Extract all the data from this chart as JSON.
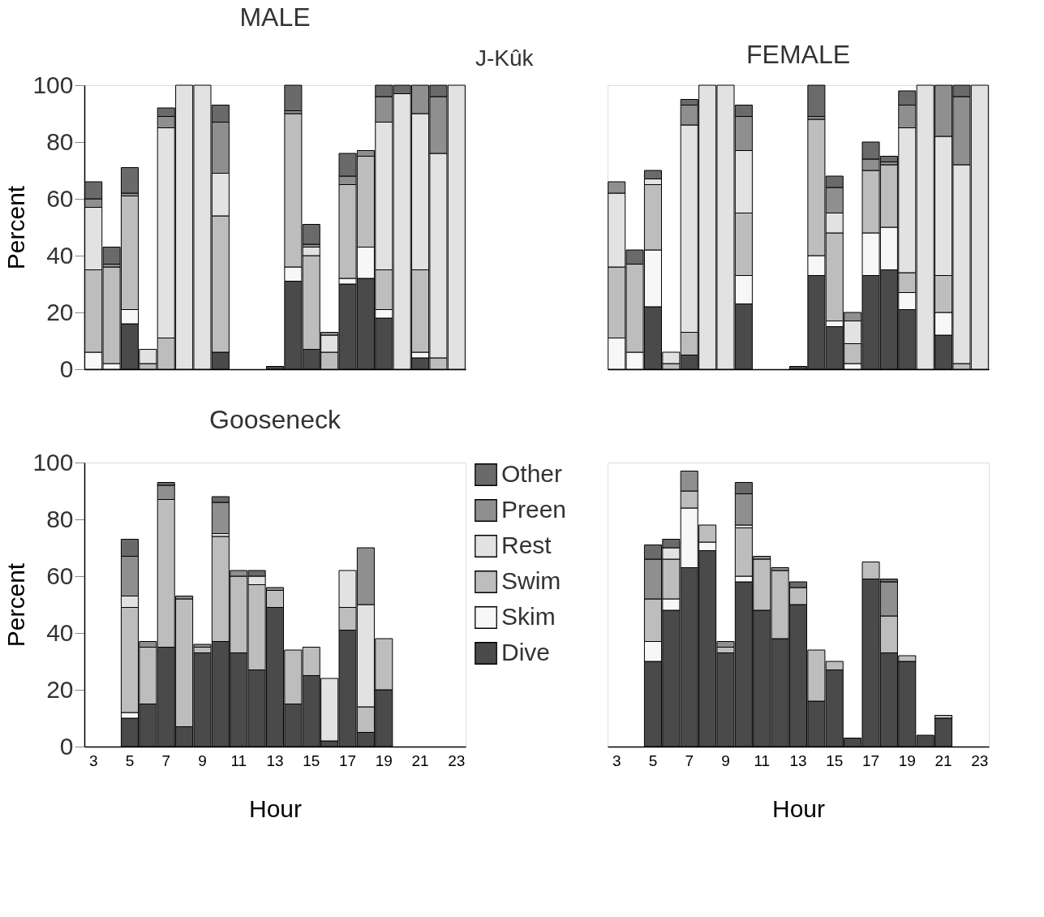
{
  "chart_data": [
    {
      "type": "bar",
      "title": "MALE",
      "annotations": [
        "J-Kûk"
      ],
      "stacked": true,
      "ylabel": "Percent",
      "tick_labels": "y",
      "grid": false,
      "categories": [
        "3",
        null,
        "5",
        null,
        "7",
        null,
        "9",
        null,
        "11",
        null,
        "13",
        null,
        "15",
        null,
        "17",
        null,
        "19",
        null,
        "21",
        null,
        "23"
      ],
      "ylim": [
        0,
        100
      ],
      "yticks": [
        0,
        20,
        40,
        60,
        80,
        100
      ],
      "series": [
        {
          "color": "#4a4a4a",
          "values": [
            null,
            null,
            16,
            null,
            null,
            null,
            null,
            6,
            null,
            null,
            1,
            31,
            7,
            null,
            30,
            32,
            18,
            null,
            4,
            null,
            null
          ]
        },
        {
          "color": "#f7f7f7",
          "values": [
            6,
            2,
            5,
            null,
            null,
            null,
            null,
            null,
            null,
            null,
            null,
            5,
            null,
            null,
            2,
            11,
            3,
            null,
            2,
            null,
            null
          ]
        },
        {
          "color": "#bdbdbd",
          "values": [
            29,
            34,
            40,
            2,
            11,
            null,
            null,
            48,
            null,
            null,
            null,
            54,
            33,
            6,
            33,
            32,
            14,
            null,
            29,
            4,
            null
          ]
        },
        {
          "color": "#e2e2e2",
          "values": [
            22,
            null,
            null,
            5,
            74,
            100,
            100,
            15,
            null,
            null,
            null,
            null,
            3,
            6,
            null,
            null,
            52,
            97,
            55,
            72,
            100
          ]
        },
        {
          "color": "#8f8f8f",
          "values": [
            3,
            1,
            1,
            null,
            4,
            null,
            null,
            18,
            null,
            null,
            null,
            1,
            1,
            1,
            3,
            2,
            9,
            null,
            10,
            20,
            null
          ]
        },
        {
          "color": "#6a6a6a",
          "values": [
            6,
            6,
            9,
            null,
            3,
            null,
            null,
            6,
            null,
            null,
            null,
            9,
            7,
            null,
            8,
            null,
            4,
            3,
            null,
            4,
            null
          ]
        }
      ]
    },
    {
      "type": "bar",
      "title": "FEMALE",
      "stacked": true,
      "tick_labels": false,
      "grid": false,
      "categories": [
        "3",
        null,
        "5",
        null,
        "7",
        null,
        "9",
        null,
        "11",
        null,
        "13",
        null,
        "15",
        null,
        "17",
        null,
        "19",
        null,
        "21",
        null,
        "23"
      ],
      "ylim": [
        0,
        100
      ],
      "yticks": [
        0,
        20,
        40,
        60,
        80,
        100
      ],
      "series": [
        {
          "color": "#4a4a4a",
          "values": [
            null,
            null,
            22,
            null,
            5,
            null,
            null,
            23,
            null,
            null,
            1,
            33,
            15,
            null,
            33,
            35,
            21,
            null,
            12,
            null,
            null
          ]
        },
        {
          "color": "#f7f7f7",
          "values": [
            11,
            6,
            20,
            null,
            null,
            null,
            null,
            10,
            null,
            null,
            null,
            7,
            2,
            2,
            15,
            15,
            6,
            null,
            8,
            null,
            null
          ]
        },
        {
          "color": "#bdbdbd",
          "values": [
            25,
            31,
            23,
            2,
            8,
            null,
            null,
            22,
            null,
            null,
            null,
            48,
            31,
            7,
            22,
            22,
            7,
            null,
            13,
            2,
            null
          ]
        },
        {
          "color": "#e2e2e2",
          "values": [
            26,
            null,
            2,
            4,
            73,
            100,
            100,
            22,
            null,
            null,
            null,
            null,
            7,
            8,
            null,
            null,
            51,
            100,
            49,
            70,
            100
          ]
        },
        {
          "color": "#8f8f8f",
          "values": [
            4,
            null,
            null,
            null,
            7,
            null,
            null,
            12,
            null,
            null,
            null,
            1,
            9,
            3,
            4,
            1,
            8,
            null,
            18,
            24,
            null
          ]
        },
        {
          "color": "#6a6a6a",
          "values": [
            null,
            5,
            3,
            null,
            2,
            null,
            null,
            4,
            null,
            null,
            null,
            11,
            4,
            null,
            6,
            2,
            5,
            null,
            null,
            4,
            null
          ]
        }
      ]
    },
    {
      "type": "bar",
      "title": "Gooseneck",
      "stacked": true,
      "xlabel": "Hour",
      "ylabel": "Percent",
      "legend": "right",
      "grid": false,
      "categories": [
        "3",
        null,
        "5",
        null,
        "7",
        null,
        "9",
        null,
        "11",
        null,
        "13",
        null,
        "15",
        null,
        "17",
        null,
        "19",
        null,
        "21",
        null,
        "23"
      ],
      "ylim": [
        0,
        100
      ],
      "yticks": [
        0,
        20,
        40,
        60,
        80,
        100
      ],
      "series": [
        {
          "name": "Dive",
          "color": "#4a4a4a",
          "values": [
            null,
            null,
            10,
            15,
            35,
            7,
            33,
            37,
            33,
            27,
            49,
            15,
            25,
            2,
            41,
            5,
            20,
            null,
            null,
            null,
            null
          ]
        },
        {
          "name": "Skim",
          "color": "#f7f7f7",
          "values": [
            null,
            null,
            2,
            null,
            null,
            null,
            null,
            null,
            null,
            null,
            null,
            null,
            null,
            null,
            null,
            null,
            null,
            null,
            null,
            null,
            null
          ]
        },
        {
          "name": "Swim",
          "color": "#bdbdbd",
          "values": [
            null,
            null,
            37,
            20,
            52,
            45,
            2,
            37,
            27,
            30,
            6,
            19,
            10,
            null,
            8,
            9,
            18,
            null,
            null,
            null,
            null
          ]
        },
        {
          "name": "Rest",
          "color": "#e2e2e2",
          "values": [
            null,
            null,
            4,
            null,
            null,
            null,
            null,
            1,
            null,
            3,
            null,
            null,
            null,
            22,
            13,
            36,
            null,
            null,
            null,
            null,
            null
          ]
        },
        {
          "name": "Preen",
          "color": "#8f8f8f",
          "values": [
            null,
            null,
            14,
            2,
            5,
            1,
            1,
            11,
            2,
            null,
            1,
            null,
            null,
            null,
            null,
            20,
            null,
            null,
            null,
            null,
            null
          ]
        },
        {
          "name": "Other",
          "color": "#6a6a6a",
          "values": [
            null,
            null,
            6,
            null,
            1,
            null,
            null,
            2,
            null,
            2,
            null,
            null,
            null,
            null,
            null,
            null,
            null,
            null,
            null,
            null,
            null
          ]
        }
      ]
    },
    {
      "type": "bar",
      "stacked": true,
      "xlabel": "Hour",
      "tick_labels": "x",
      "grid": false,
      "categories": [
        "3",
        null,
        "5",
        null,
        "7",
        null,
        "9",
        null,
        "11",
        null,
        "13",
        null,
        "15",
        null,
        "17",
        null,
        "19",
        null,
        "21",
        null,
        "23"
      ],
      "ylim": [
        0,
        100
      ],
      "yticks": [
        0,
        20,
        40,
        60,
        80,
        100
      ],
      "series": [
        {
          "color": "#4a4a4a",
          "values": [
            null,
            null,
            30,
            48,
            63,
            69,
            33,
            58,
            48,
            38,
            50,
            16,
            27,
            3,
            59,
            33,
            30,
            4,
            10,
            null,
            null
          ]
        },
        {
          "color": "#f7f7f7",
          "values": [
            null,
            null,
            7,
            4,
            21,
            3,
            null,
            2,
            null,
            null,
            null,
            null,
            null,
            null,
            null,
            null,
            null,
            null,
            null,
            null,
            null
          ]
        },
        {
          "color": "#bdbdbd",
          "values": [
            null,
            null,
            15,
            14,
            6,
            6,
            2,
            17,
            18,
            24,
            6,
            18,
            3,
            null,
            6,
            13,
            2,
            null,
            1,
            null,
            null
          ]
        },
        {
          "color": "#e2e2e2",
          "values": [
            null,
            null,
            null,
            4,
            null,
            null,
            null,
            1,
            null,
            null,
            null,
            null,
            null,
            null,
            null,
            null,
            null,
            null,
            null,
            null,
            null
          ]
        },
        {
          "color": "#8f8f8f",
          "values": [
            null,
            null,
            14,
            null,
            7,
            null,
            2,
            11,
            1,
            1,
            null,
            null,
            null,
            null,
            null,
            12,
            null,
            null,
            null,
            null,
            null
          ]
        },
        {
          "color": "#6a6a6a",
          "values": [
            null,
            null,
            5,
            3,
            null,
            null,
            null,
            4,
            null,
            null,
            2,
            null,
            null,
            null,
            null,
            1,
            null,
            null,
            null,
            null,
            null
          ]
        }
      ]
    }
  ]
}
